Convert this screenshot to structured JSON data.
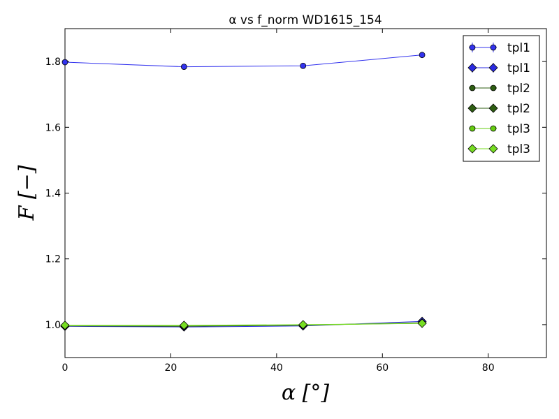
{
  "chart_data": {
    "type": "line",
    "title": "α vs f_norm WD1615_154",
    "xlabel": "α [°]",
    "ylabel": "F [−]",
    "xlim": [
      0,
      91
    ],
    "ylim": [
      0.9,
      1.9
    ],
    "xticks": [
      0,
      20,
      40,
      60,
      80
    ],
    "xtick_labels": [
      "0",
      "20",
      "40",
      "60",
      "80"
    ],
    "yticks": [
      1.0,
      1.2,
      1.4,
      1.6,
      1.8
    ],
    "ytick_labels": [
      "1.0",
      "1.2",
      "1.4",
      "1.6",
      "1.8"
    ],
    "grid": false,
    "legend_position": "top-right",
    "x": [
      0,
      22.5,
      45,
      67.5
    ],
    "series": [
      {
        "name": "tpl1",
        "marker": "circle",
        "color": "#3333ee",
        "values": [
          1.798,
          1.784,
          1.787,
          1.82
        ]
      },
      {
        "name": "tpl1",
        "marker": "diamond",
        "color": "#2a2ae0",
        "values": [
          0.995,
          0.993,
          0.996,
          1.01
        ]
      },
      {
        "name": "tpl2",
        "marker": "circle",
        "color": "#2e5e12",
        "values": [
          0.996,
          0.995,
          0.998,
          1.006
        ]
      },
      {
        "name": "tpl2",
        "marker": "diamond",
        "color": "#2e5e12",
        "values": [
          0.997,
          0.996,
          0.999,
          1.005
        ]
      },
      {
        "name": "tpl3",
        "marker": "circle",
        "color": "#66cc11",
        "values": [
          0.997,
          0.997,
          0.999,
          1.004
        ]
      },
      {
        "name": "tpl3",
        "marker": "diamond",
        "color": "#77dd22",
        "values": [
          0.998,
          0.998,
          1.0,
          1.004
        ]
      }
    ]
  }
}
